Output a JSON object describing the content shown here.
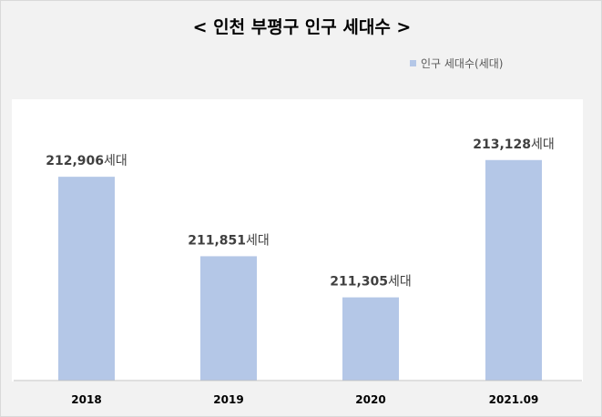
{
  "chart_data": {
    "type": "bar",
    "title": "< 인천 부평구 인구 세대수 >",
    "categories": [
      "2018",
      "2019",
      "2020",
      "2021.09"
    ],
    "series": [
      {
        "name": "인구 세대수(세대)",
        "values": [
          212906,
          211851,
          211305,
          213128
        ],
        "color": "#b4c7e7"
      }
    ],
    "data_labels": [
      "212,906세대",
      "211,851세대",
      "211,305세대",
      "213,128세대"
    ],
    "legend_position": "top-right",
    "grid": false,
    "ylim": [
      210200,
      213500
    ]
  }
}
